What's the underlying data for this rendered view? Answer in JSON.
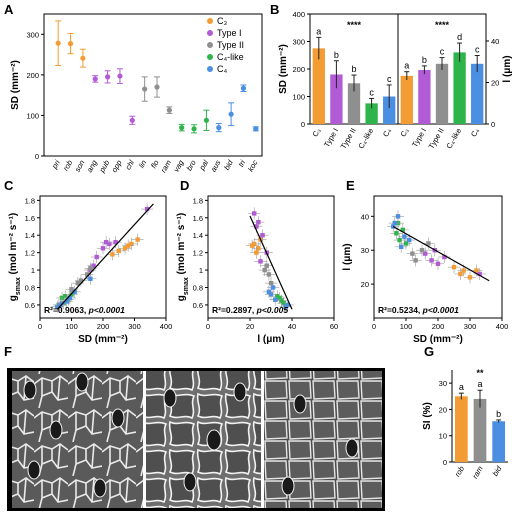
{
  "panels": {
    "A": {
      "letter": "A"
    },
    "B": {
      "letter": "B"
    },
    "C": {
      "letter": "C"
    },
    "D": {
      "letter": "D"
    },
    "E": {
      "letter": "E"
    },
    "F": {
      "letter": "F"
    },
    "G": {
      "letter": "G"
    }
  },
  "colors": {
    "C3": "#f39c34",
    "Type I": "#b25bd6",
    "Type II": "#8f8f8f",
    "C4-like": "#2db44a",
    "C4": "#4a8fe2"
  },
  "chart_data": [
    {
      "panel": "A",
      "type": "scatter",
      "ylabel": "SD (mm⁻²)",
      "yticks": [
        0,
        100,
        200,
        300
      ],
      "ylim": [
        0,
        350
      ],
      "legend_position": "top-right",
      "legend": [
        "C3",
        "Type I",
        "Type II",
        "C4-like",
        "C4"
      ],
      "legend_display": [
        "C₃",
        "Type I",
        "Type II",
        "C₄-like",
        "C₄"
      ],
      "categories": [
        "pri",
        "rob",
        "son",
        "ang",
        "pub",
        "opp",
        "chl",
        "lin",
        "flo",
        "ram",
        "vag",
        "bro",
        "pal",
        "aus",
        "bid",
        "tri",
        "koc"
      ],
      "groups": [
        "C3",
        "C3",
        "C3",
        "Type I",
        "Type I",
        "Type I",
        "Type I",
        "Type II",
        "Type II",
        "Type II",
        "C4-like",
        "C4-like",
        "C4-like",
        "C4",
        "C4",
        "C4",
        "C4"
      ],
      "values": [
        278,
        277,
        241,
        190,
        195,
        197,
        88,
        165,
        170,
        113,
        70,
        67,
        88,
        70,
        103,
        167,
        67
      ],
      "errors": [
        55,
        25,
        22,
        8,
        15,
        18,
        10,
        30,
        25,
        8,
        8,
        10,
        25,
        10,
        28,
        8,
        5
      ]
    },
    {
      "panel": "B",
      "type": "bar",
      "categories": [
        "C3",
        "Type I",
        "Type II",
        "C4-like",
        "C4"
      ],
      "categories_display": [
        "C₃",
        "Type I",
        "Type II",
        "C₄-like",
        "C₄"
      ],
      "left": {
        "ylabel": "SD (mm⁻²)",
        "yticks": [
          0,
          100,
          200,
          300,
          400
        ],
        "ylim": [
          0,
          400
        ],
        "values": [
          275,
          180,
          148,
          75,
          100
        ],
        "errors": [
          40,
          50,
          30,
          18,
          42
        ],
        "letters": [
          "a",
          "b",
          "b",
          "c",
          "c"
        ],
        "significance": "****"
      },
      "right": {
        "ylabel": "l (μm)",
        "yticks": [
          0,
          20,
          40
        ],
        "ylim": [
          0,
          53
        ],
        "values": [
          23.2,
          26,
          29,
          34.5,
          29
        ],
        "errors": [
          2,
          2,
          3,
          4.5,
          4
        ],
        "letters": [
          "a",
          "b",
          "c",
          "d",
          "c"
        ],
        "significance": "****"
      }
    },
    {
      "panel": "C",
      "type": "scatter",
      "xlabel": "SD (mm⁻²)",
      "ylabel": "gₛmax (mol m⁻² s⁻¹)",
      "ylabel_main": "g",
      "ylabel_sub": "smax",
      "ylabel_units": " (mol m⁻² s⁻¹)",
      "xticks": [
        0,
        100,
        200,
        300,
        400
      ],
      "yticks": [
        0.6,
        0.8,
        1.0,
        1.2,
        1.4,
        1.6,
        1.8
      ],
      "xlim": [
        0,
        400
      ],
      "ylim": [
        0.45,
        1.85
      ],
      "annotation_r2": "R²=0.9063,",
      "annotation_p": "p<0.0001",
      "fit": {
        "x": [
          55,
          360
        ],
        "y": [
          0.55,
          1.76
        ]
      },
      "series": [
        {
          "name": "C3",
          "points": [
            [
              230,
              1.18
            ],
            [
              250,
              1.22
            ],
            [
              270,
              1.25
            ],
            [
              290,
              1.3
            ],
            [
              310,
              1.35
            ],
            [
              280,
              1.28
            ]
          ]
        },
        {
          "name": "Type I",
          "points": [
            [
              180,
              1.15
            ],
            [
              200,
              1.25
            ],
            [
              220,
              1.3
            ],
            [
              240,
              1.32
            ],
            [
              170,
              1.05
            ],
            [
              340,
              1.7
            ],
            [
              210,
              1.32
            ],
            [
              160,
              1.0
            ]
          ]
        },
        {
          "name": "Type II",
          "points": [
            [
              120,
              0.85
            ],
            [
              150,
              0.95
            ],
            [
              130,
              0.88
            ],
            [
              160,
              1.02
            ],
            [
              100,
              0.78
            ]
          ]
        },
        {
          "name": "C4-like",
          "points": [
            [
              60,
              0.6
            ],
            [
              75,
              0.62
            ],
            [
              80,
              0.7
            ],
            [
              90,
              0.66
            ],
            [
              70,
              0.68
            ],
            [
              100,
              0.72
            ]
          ]
        },
        {
          "name": "C4",
          "points": [
            [
              55,
              0.58
            ],
            [
              70,
              0.62
            ],
            [
              95,
              0.68
            ],
            [
              110,
              0.75
            ],
            [
              160,
              0.9
            ],
            [
              85,
              0.64
            ],
            [
              65,
              0.6
            ]
          ]
        }
      ]
    },
    {
      "panel": "D",
      "type": "scatter",
      "xlabel": "l (μm)",
      "ylabel": "gₛmax (mol m⁻² s⁻¹)",
      "ylabel_main": "g",
      "ylabel_sub": "smax",
      "ylabel_units": " (mol m⁻² s⁻¹)",
      "xticks": [
        0,
        20,
        40,
        60
      ],
      "yticks": [
        0.6,
        0.8,
        1.0,
        1.2,
        1.4,
        1.6,
        1.8
      ],
      "xlim": [
        0,
        60
      ],
      "ylim": [
        0.45,
        1.85
      ],
      "annotation_r2": "R²=0.2897,",
      "annotation_p": "p<0.005",
      "fit": {
        "x": [
          20,
          40
        ],
        "y": [
          1.62,
          0.55
        ]
      },
      "series": [
        {
          "name": "C3",
          "points": [
            [
              22,
              1.3
            ],
            [
              24,
              1.25
            ],
            [
              23,
              1.2
            ],
            [
              25,
              1.35
            ],
            [
              21,
              1.28
            ]
          ]
        },
        {
          "name": "Type I",
          "points": [
            [
              22,
              1.65
            ],
            [
              24,
              1.55
            ],
            [
              26,
              1.4
            ],
            [
              28,
              1.2
            ],
            [
              23,
              1.5
            ],
            [
              25,
              1.1
            ]
          ]
        },
        {
          "name": "Type II",
          "points": [
            [
              27,
              1.0
            ],
            [
              29,
              0.95
            ],
            [
              30,
              0.85
            ],
            [
              28,
              1.05
            ]
          ]
        },
        {
          "name": "C4-like",
          "points": [
            [
              33,
              0.7
            ],
            [
              35,
              0.65
            ],
            [
              36,
              0.62
            ],
            [
              34,
              0.68
            ]
          ]
        },
        {
          "name": "C4",
          "points": [
            [
              30,
              0.72
            ],
            [
              32,
              0.66
            ],
            [
              38,
              0.6
            ],
            [
              31,
              0.8
            ],
            [
              37,
              0.58
            ],
            [
              29,
              0.75
            ]
          ]
        }
      ]
    },
    {
      "panel": "E",
      "type": "scatter",
      "xlabel": "SD (mm⁻²)",
      "ylabel": "l (μm)",
      "xticks": [
        0,
        100,
        200,
        300,
        400
      ],
      "yticks": [
        0,
        20,
        30,
        40
      ],
      "xlim": [
        0,
        400
      ],
      "ylim": [
        10,
        46
      ],
      "annotation_r2": "R²=0.5234,",
      "annotation_p": "p<0.0001",
      "fit": {
        "x": [
          60,
          360
        ],
        "y": [
          37,
          21
        ]
      },
      "series": [
        {
          "name": "C3",
          "points": [
            [
              250,
              25
            ],
            [
              280,
              24
            ],
            [
              300,
              22
            ],
            [
              270,
              23
            ],
            [
              320,
              24
            ]
          ]
        },
        {
          "name": "Type I",
          "points": [
            [
              180,
              27
            ],
            [
              200,
              26
            ],
            [
              220,
              28
            ],
            [
              190,
              30
            ],
            [
              330,
              23
            ],
            [
              160,
              29
            ]
          ]
        },
        {
          "name": "Type II",
          "points": [
            [
              120,
              29
            ],
            [
              150,
              30
            ],
            [
              130,
              27
            ],
            [
              170,
              32
            ]
          ]
        },
        {
          "name": "C4-like",
          "points": [
            [
              70,
              35
            ],
            [
              80,
              33
            ],
            [
              90,
              36
            ],
            [
              75,
              38
            ],
            [
              100,
              32
            ]
          ]
        },
        {
          "name": "C4",
          "points": [
            [
              60,
              37
            ],
            [
              75,
              40
            ],
            [
              95,
              34
            ],
            [
              110,
              33
            ],
            [
              85,
              31
            ],
            [
              65,
              38
            ]
          ]
        }
      ]
    },
    {
      "panel": "G",
      "type": "bar",
      "ylabel": "SI (%)",
      "yticks": [
        0,
        10,
        20,
        30
      ],
      "ylim": [
        0,
        35
      ],
      "categories": [
        "rob",
        "ram",
        "bid"
      ],
      "values": [
        25,
        24,
        15.5
      ],
      "errors": [
        1.2,
        3.3,
        0.5
      ],
      "letters": [
        "a",
        "a",
        "b"
      ],
      "significance": "**",
      "bar_colors": [
        "#f39c34",
        "#8f8f8f",
        "#4a8fe2"
      ]
    }
  ]
}
